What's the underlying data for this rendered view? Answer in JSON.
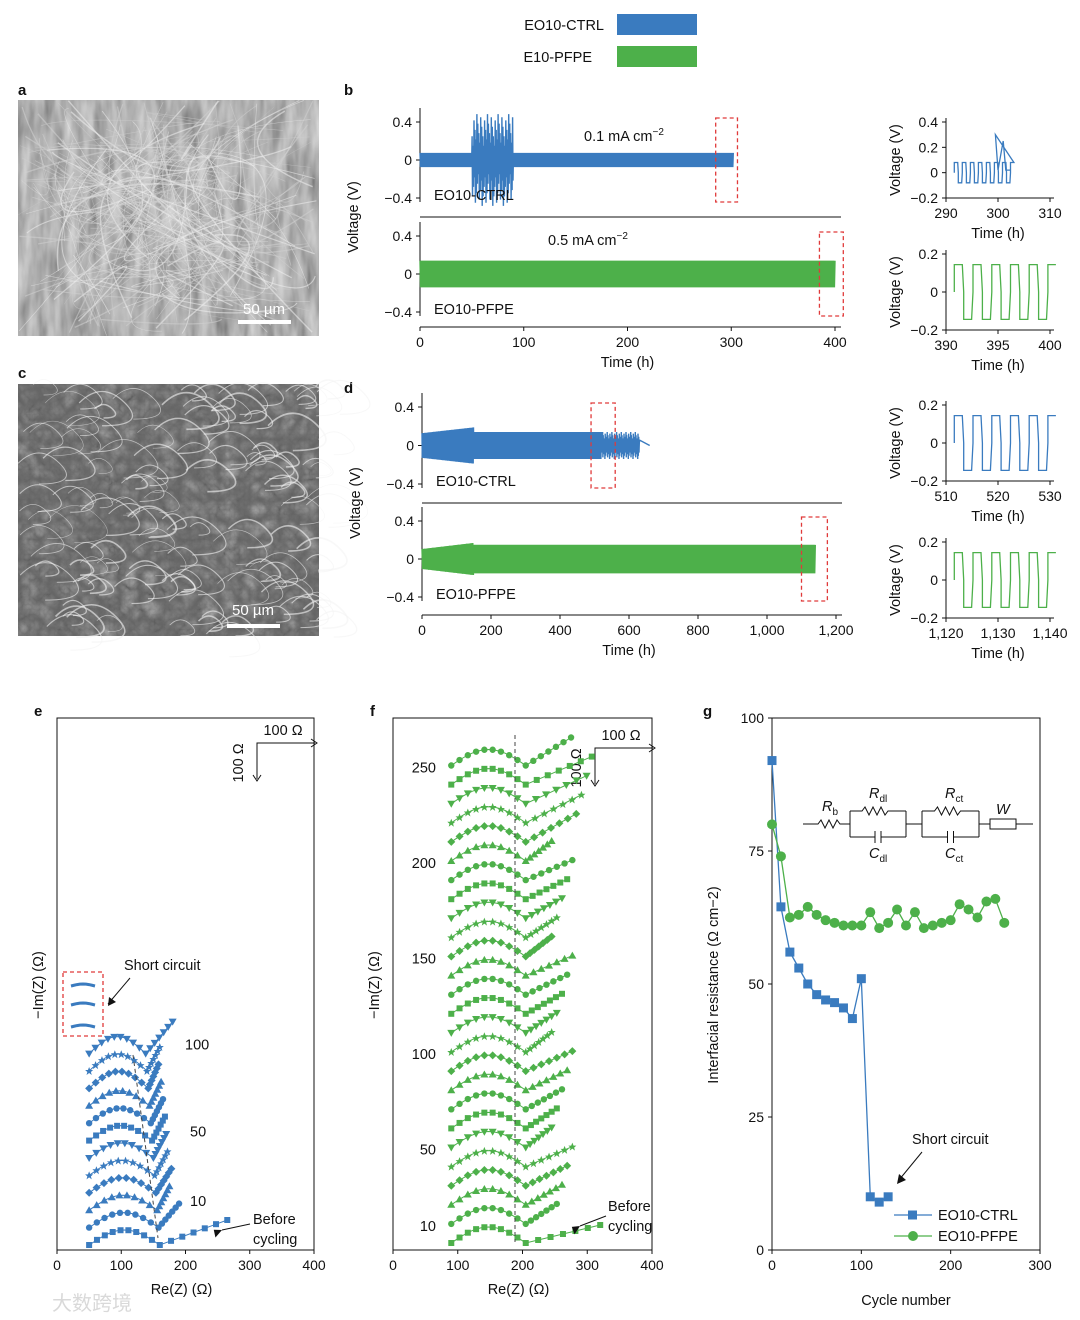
{
  "colors": {
    "ctrl": "#3a7bbf",
    "pfpe": "#4db04a",
    "box": "#e03a3a"
  },
  "legend_top": [
    {
      "label": "EO10-CTRL",
      "color": "#3a7bbf"
    },
    {
      "label": "E10-PFPE",
      "color": "#4db04a"
    }
  ],
  "panel_labels": {
    "a": "a",
    "b": "b",
    "c": "c",
    "d": "d",
    "e": "e",
    "f": "f",
    "g": "g"
  },
  "sem": {
    "a_scale": "50 µm",
    "c_scale": "50 µm"
  },
  "watermark": "大数跨境",
  "chart_data": [
    {
      "id": "b",
      "type": "line",
      "xlabel": "Time (h)",
      "ylabel": "Voltage (V)",
      "xlim": [
        0,
        400
      ],
      "xticks": [
        "0",
        "100",
        "200",
        "300",
        "400"
      ],
      "top": {
        "label": "EO10-CTRL",
        "current": "0.1 mA cm",
        "current_exp": "−2",
        "ylim": [
          -0.4,
          0.4
        ],
        "yticks": [
          "0.4",
          "0",
          "−0.4"
        ],
        "end_time": 302,
        "amplitude": 0.075,
        "box_range": [
          285,
          306
        ]
      },
      "bottom": {
        "label": "EO10-PFPE",
        "current": "0.5 mA cm",
        "current_exp": "−2",
        "ylim": [
          -0.4,
          0.4
        ],
        "yticks": [
          "0.4",
          "0",
          "−0.4"
        ],
        "end_time": 400,
        "amplitude": 0.14,
        "box_range": [
          385,
          408
        ]
      },
      "insets": [
        {
          "xlabel": "Time (h)",
          "ylabel": "Voltage (V)",
          "xlim": [
            290,
            310
          ],
          "xticks": [
            "290",
            "300",
            "310"
          ],
          "ylim": [
            -0.2,
            0.4
          ],
          "yticks": [
            "0.4",
            "0.2",
            "0",
            "−0.2"
          ],
          "series": "ctrl"
        },
        {
          "xlabel": "Time (h)",
          "ylabel": "Voltage (V)",
          "xlim": [
            390,
            400
          ],
          "xticks": [
            "390",
            "395",
            "400"
          ],
          "ylim": [
            -0.2,
            0.2
          ],
          "yticks": [
            "0.2",
            "0",
            "−0.2"
          ],
          "series": "pfpe"
        }
      ]
    },
    {
      "id": "d",
      "type": "line",
      "xlabel": "Time (h)",
      "ylabel": "Voltage (V)",
      "xlim": [
        0,
        1200
      ],
      "xticks": [
        "0",
        "200",
        "400",
        "600",
        "800",
        "1,000",
        "1,200"
      ],
      "top": {
        "label": "EO10-CTRL",
        "ylim": [
          -0.4,
          0.4
        ],
        "yticks": [
          "0.4",
          "0",
          "−0.4"
        ],
        "end_time": 630,
        "amplitude": 0.14,
        "box_range": [
          490,
          560
        ]
      },
      "bottom": {
        "label": "EO10-PFPE",
        "ylim": [
          -0.4,
          0.4
        ],
        "yticks": [
          "0.4",
          "0",
          "−0.4"
        ],
        "end_time": 1140,
        "amplitude": 0.15,
        "box_range": [
          1100,
          1175
        ]
      },
      "insets": [
        {
          "xlabel": "Time (h)",
          "ylabel": "Voltage (V)",
          "xlim": [
            510,
            530
          ],
          "xticks": [
            "510",
            "520",
            "530"
          ],
          "ylim": [
            -0.2,
            0.2
          ],
          "yticks": [
            "0.2",
            "0",
            "−0.2"
          ],
          "series": "ctrl"
        },
        {
          "xlabel": "Time (h)",
          "ylabel": "Voltage (V)",
          "xlim": [
            1120,
            1140
          ],
          "xticks": [
            "1,120",
            "1,130",
            "1,140"
          ],
          "ylim": [
            -0.2,
            0.2
          ],
          "yticks": [
            "0.2",
            "0",
            "−0.2"
          ],
          "series": "pfpe"
        }
      ]
    },
    {
      "id": "e",
      "type": "scatter",
      "xlabel": "Re(Z) (Ω)",
      "ylabel": "−Im(Z) (Ω)",
      "xlim": [
        0,
        400
      ],
      "xticks": [
        "0",
        "100",
        "200",
        "300",
        "400"
      ],
      "scale_bar": {
        "h": "100 Ω",
        "v": "100 Ω"
      },
      "curve_labels": [
        {
          "text": "100",
          "curve": 11
        },
        {
          "text": "50",
          "curve": 6
        },
        {
          "text": "10",
          "curve": 2
        }
      ],
      "before_cycling": "Before\ncycling",
      "short_circuit": "Short circuit",
      "n_curves": 12,
      "re_start": 50,
      "arc_end": 170,
      "arc_height": 18,
      "tail_end": [
        265,
        190,
        175,
        178,
        172,
        170,
        168,
        165,
        162,
        158,
        160,
        180
      ]
    },
    {
      "id": "f",
      "type": "scatter",
      "xlabel": "Re(Z) (Ω)",
      "ylabel": "−Im(Z) (Ω)",
      "xlim": [
        0,
        400
      ],
      "xticks": [
        "0",
        "100",
        "200",
        "300",
        "400"
      ],
      "scale_bar": {
        "h": "100 Ω",
        "v": "100 Ω"
      },
      "curve_labels": [
        {
          "text": "250",
          "curve": 25
        },
        {
          "text": "200",
          "curve": 20
        },
        {
          "text": "150",
          "curve": 15
        },
        {
          "text": "100",
          "curve": 10
        },
        {
          "text": "50",
          "curve": 5
        },
        {
          "text": "10",
          "curve": 1
        }
      ],
      "before_cycling": "Before\ncycling",
      "n_curves": 26,
      "re_start": 90,
      "arc_end": 205
    },
    {
      "id": "g",
      "type": "line",
      "xlabel": "Cycle number",
      "ylabel": "Interfacial resistance (Ω cm−2)",
      "xlim": [
        0,
        300
      ],
      "xticks": [
        "0",
        "100",
        "200",
        "300"
      ],
      "ylim": [
        0,
        100
      ],
      "yticks": [
        "0",
        "25",
        "50",
        "75",
        "100"
      ],
      "annotation": "Short circuit",
      "circuit": {
        "rb": "R",
        "rb_sub": "b",
        "rdl": "R",
        "rdl_sub": "dl",
        "rct": "R",
        "rct_sub": "ct",
        "cdl": "C",
        "cdl_sub": "dl",
        "cct": "C",
        "cct_sub": "ct",
        "w": "W"
      },
      "series": [
        {
          "name": "EO10-CTRL",
          "color": "#3a7bbf",
          "marker": "square",
          "x": [
            0,
            10,
            20,
            30,
            40,
            50,
            60,
            70,
            80,
            90,
            100,
            110,
            120,
            130
          ],
          "y": [
            92,
            64.5,
            56,
            53,
            50,
            48,
            47,
            46.5,
            45.5,
            43.5,
            51,
            10,
            9,
            10
          ]
        },
        {
          "name": "EO10-PFPE",
          "color": "#4db04a",
          "marker": "circle",
          "x": [
            0,
            10,
            20,
            30,
            40,
            50,
            60,
            70,
            80,
            90,
            100,
            110,
            120,
            130,
            140,
            150,
            160,
            170,
            180,
            190,
            200,
            210,
            220,
            230,
            240,
            250,
            260
          ],
          "y": [
            80,
            74,
            62.5,
            63,
            64.5,
            63,
            62,
            61.5,
            61,
            61,
            61,
            63.5,
            60.5,
            61.5,
            64,
            61,
            63.5,
            60.5,
            61,
            61.5,
            62,
            65,
            64,
            62.5,
            65.5,
            66,
            61.5
          ]
        }
      ]
    }
  ]
}
